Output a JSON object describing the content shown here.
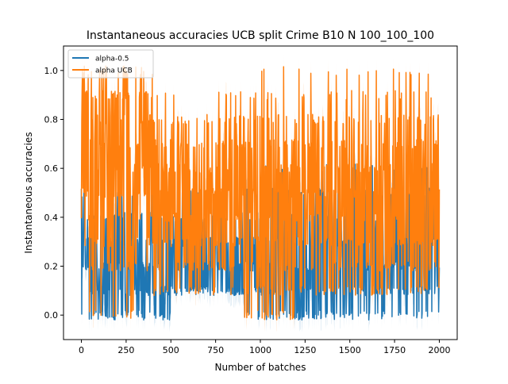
{
  "chart_data": {
    "type": "line",
    "title": "Instantaneous accuracies UCB split Crime B10 N 100_100_100",
    "xlabel": "Number of batches",
    "ylabel": "Instantaneous accuracies",
    "xlim": [
      -100,
      2100
    ],
    "ylim": [
      -0.1,
      1.1
    ],
    "xticks": [
      0,
      250,
      500,
      750,
      1000,
      1250,
      1500,
      1750,
      2000
    ],
    "yticks": [
      0.0,
      0.2,
      0.4,
      0.6,
      0.8,
      1.0
    ],
    "xtick_labels": [
      "0",
      "250",
      "500",
      "750",
      "1000",
      "1250",
      "1500",
      "1750",
      "2000"
    ],
    "ytick_labels": [
      "0.0",
      "0.2",
      "0.4",
      "0.6",
      "0.8",
      "1.0"
    ],
    "grid": false,
    "legend_position": "upper-left",
    "series": [
      {
        "name": "alpha-0.5",
        "color": "#1f77b4",
        "x_range": [
          0,
          2000
        ],
        "segments": [
          {
            "x": [
              0,
              500
            ],
            "min": 0.0,
            "max": 0.5,
            "mean": 0.2
          },
          {
            "x": [
              500,
              900
            ],
            "min": 0.1,
            "max": 0.55,
            "mean": 0.22
          },
          {
            "x": [
              900,
              1300
            ],
            "min": 0.0,
            "max": 0.6,
            "mean": 0.25
          },
          {
            "x": [
              1300,
              2000
            ],
            "min": 0.0,
            "max": 0.65,
            "mean": 0.27
          }
        ]
      },
      {
        "name": "alpha UCB",
        "color": "#ff7f0e",
        "x_range": [
          0,
          2000
        ],
        "segments": [
          {
            "x": [
              0,
              400
            ],
            "min": 0.0,
            "max": 0.97,
            "mean": 0.6
          },
          {
            "x": [
              400,
              900
            ],
            "min": 0.1,
            "max": 0.9,
            "mean": 0.45
          },
          {
            "x": [
              900,
              1300
            ],
            "min": 0.0,
            "max": 0.98,
            "mean": 0.42
          },
          {
            "x": [
              1300,
              2000
            ],
            "min": 0.1,
            "max": 0.98,
            "mean": 0.48
          }
        ]
      }
    ]
  }
}
